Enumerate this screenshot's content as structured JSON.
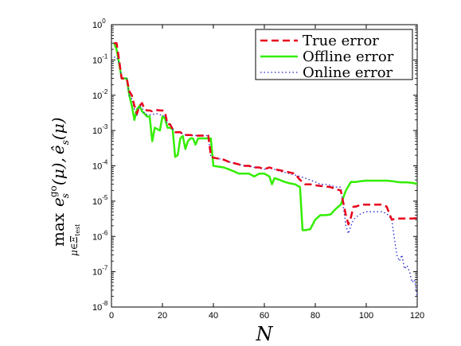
{
  "chart_data": {
    "type": "line",
    "title": "",
    "xlabel": "N",
    "ylabel": "max_{μ∈Ξ_test} e_s^go(μ), ê_s(μ)",
    "ylabel_parts": {
      "max": "max",
      "sub": "μ∈Ξ",
      "subsub": "test",
      "e": "e",
      "e_sub": "s",
      "e_sup": "go",
      "arg1": "(μ),",
      "hat": "ê",
      "hat_sub": "s",
      "arg2": "(μ)"
    },
    "xlim": [
      0,
      120
    ],
    "ylim": [
      1e-08,
      1
    ],
    "yscale": "log",
    "grid": false,
    "legend_position": "top-right",
    "x_ticks": [
      0,
      20,
      40,
      60,
      80,
      100,
      120
    ],
    "y_ticks": [
      {
        "base": "10",
        "exp": "-8"
      },
      {
        "base": "10",
        "exp": "-7"
      },
      {
        "base": "10",
        "exp": "-6"
      },
      {
        "base": "10",
        "exp": "-5"
      },
      {
        "base": "10",
        "exp": "-4"
      },
      {
        "base": "10",
        "exp": "-3"
      },
      {
        "base": "10",
        "exp": "-2"
      },
      {
        "base": "10",
        "exp": "-1"
      },
      {
        "base": "10",
        "exp": "0"
      }
    ],
    "series": [
      {
        "name": "True error",
        "color": "#e8001c",
        "style": "dashed",
        "x": [
          1,
          2,
          3,
          4,
          5,
          6,
          7,
          8,
          9,
          10,
          11,
          12,
          13,
          14,
          15,
          16,
          17,
          18,
          19,
          20,
          21,
          22,
          23,
          24,
          25,
          26,
          27,
          28,
          29,
          30,
          31,
          32,
          33,
          34,
          35,
          36,
          37,
          38,
          39,
          40,
          42,
          44,
          46,
          48,
          50,
          52,
          54,
          56,
          58,
          60,
          62,
          64,
          66,
          68,
          70,
          72,
          74,
          76,
          78,
          80,
          82,
          84,
          86,
          88,
          90,
          92,
          93,
          94,
          95,
          96,
          98,
          100,
          102,
          104,
          106,
          108,
          110,
          112,
          114,
          116,
          118,
          120
        ],
        "y": [
          0.3,
          0.3,
          0.1,
          0.03,
          0.03,
          0.03,
          0.013,
          0.01,
          0.005,
          0.003,
          0.005,
          0.006,
          0.004,
          0.0037,
          0.0037,
          0.0035,
          0.0037,
          0.0038,
          0.0037,
          0.0037,
          0.0033,
          0.0015,
          0.0015,
          0.0011,
          0.0009,
          0.0009,
          0.0009,
          0.0008,
          0.00075,
          0.00075,
          0.00075,
          0.00072,
          0.00072,
          0.00072,
          0.00072,
          0.00072,
          0.00072,
          0.00072,
          0.0002,
          0.00017,
          0.00016,
          0.00015,
          0.00013,
          0.00012,
          0.00011,
          0.0001,
          0.0001,
          9e-05,
          9e-05,
          8e-05,
          9e-05,
          8e-05,
          7.5e-05,
          7e-05,
          6.5e-05,
          6e-05,
          4e-05,
          3e-05,
          3e-05,
          2.8e-05,
          2.7e-05,
          2.6e-05,
          2.5e-05,
          2.2e-05,
          2e-05,
          4e-06,
          2.2e-06,
          3.5e-06,
          7e-06,
          7e-06,
          8e-06,
          8e-06,
          8e-06,
          8e-06,
          8e-06,
          7e-06,
          3e-06,
          3.2e-06,
          3.2e-06,
          3.2e-06,
          3.2e-06,
          3.3e-06
        ]
      },
      {
        "name": "Offline error",
        "color": "#33ee00",
        "style": "solid",
        "x": [
          1,
          2,
          3,
          4,
          5,
          6,
          7,
          8,
          9,
          10,
          11,
          12,
          13,
          14,
          15,
          16,
          17,
          18,
          19,
          20,
          21,
          22,
          23,
          24,
          25,
          26,
          27,
          28,
          29,
          30,
          31,
          32,
          33,
          34,
          35,
          36,
          37,
          38,
          39,
          40,
          42,
          44,
          46,
          48,
          50,
          52,
          54,
          56,
          58,
          60,
          62,
          63,
          64,
          66,
          68,
          70,
          72,
          74,
          75,
          76,
          78,
          80,
          82,
          84,
          86,
          88,
          90,
          92,
          94,
          96,
          98,
          100,
          102,
          104,
          106,
          108,
          110,
          112,
          114,
          116,
          118,
          120
        ],
        "y": [
          0.3,
          0.2,
          0.08,
          0.03,
          0.03,
          0.03,
          0.01,
          0.005,
          0.002,
          0.004,
          0.005,
          0.0035,
          0.003,
          0.0025,
          0.0025,
          0.0005,
          0.0012,
          0.0011,
          0.001,
          0.0025,
          0.0022,
          0.0012,
          0.0012,
          0.0011,
          0.00018,
          0.0002,
          0.0006,
          0.0007,
          0.0003,
          0.0005,
          0.0006,
          0.0006,
          0.0004,
          0.0006,
          0.0006,
          0.0006,
          0.0006,
          0.0006,
          0.0006,
          0.0001,
          9.5e-05,
          9e-05,
          8e-05,
          7e-05,
          6e-05,
          6e-05,
          6e-05,
          5e-05,
          6e-05,
          6e-05,
          5e-05,
          3e-05,
          4.5e-05,
          4e-05,
          3.5e-05,
          3.2e-05,
          3e-05,
          2.5e-05,
          1.5e-06,
          1.5e-06,
          1.6e-06,
          3e-06,
          4e-06,
          4e-06,
          4.2e-06,
          6e-06,
          8e-06,
          2e-05,
          3.5e-05,
          3.5e-05,
          3.7e-05,
          3.8e-05,
          3.8e-05,
          3.8e-05,
          3.8e-05,
          3.8e-05,
          3.7e-05,
          3.5e-05,
          3.4e-05,
          3.4e-05,
          3.3e-05,
          3.1e-05
        ]
      },
      {
        "name": "Online error",
        "color": "#2222cc",
        "style": "dotted",
        "x": [
          1,
          2,
          3,
          4,
          5,
          6,
          7,
          8,
          9,
          10,
          11,
          12,
          13,
          14,
          15,
          16,
          17,
          18,
          19,
          20,
          21,
          22,
          23,
          24,
          25,
          26,
          27,
          28,
          29,
          30,
          31,
          32,
          33,
          34,
          35,
          36,
          37,
          38,
          39,
          40,
          42,
          44,
          46,
          48,
          50,
          52,
          54,
          56,
          58,
          60,
          62,
          64,
          66,
          68,
          70,
          72,
          74,
          76,
          78,
          80,
          82,
          84,
          86,
          88,
          90,
          92,
          93,
          94,
          95,
          96,
          98,
          100,
          102,
          104,
          106,
          108,
          110,
          112,
          113,
          114,
          115,
          116,
          117,
          118,
          119,
          120
        ],
        "y": [
          0.12,
          0.12,
          0.08,
          0.03,
          0.03,
          0.03,
          0.01,
          0.008,
          0.004,
          0.0027,
          0.005,
          0.0045,
          0.003,
          0.0028,
          0.0028,
          0.0028,
          0.003,
          0.003,
          0.0028,
          0.0027,
          0.0025,
          0.0015,
          0.0015,
          0.0011,
          0.0009,
          0.0009,
          0.0009,
          0.0008,
          0.00075,
          0.00075,
          0.00075,
          0.00072,
          0.00072,
          0.00072,
          0.00072,
          0.00072,
          0.00072,
          0.00072,
          0.00018,
          0.00017,
          0.00016,
          0.00015,
          0.00013,
          0.00012,
          0.00011,
          0.0001,
          0.0001,
          9e-05,
          9e-05,
          8e-05,
          9e-05,
          8e-05,
          7e-05,
          6.5e-05,
          6e-05,
          5.5e-05,
          5e-05,
          4.5e-05,
          4e-05,
          3.5e-05,
          3e-05,
          3e-05,
          2.8e-05,
          2.5e-05,
          2.5e-05,
          2e-06,
          1.2e-06,
          2e-06,
          3e-06,
          3.5e-06,
          4.5e-06,
          5e-06,
          5e-06,
          5e-06,
          5e-06,
          4.5e-06,
          3e-06,
          3e-07,
          2e-07,
          3e-07,
          1.2e-07,
          1.5e-07,
          1e-07,
          5e-08,
          6e-08,
          2e-08
        ]
      }
    ]
  }
}
